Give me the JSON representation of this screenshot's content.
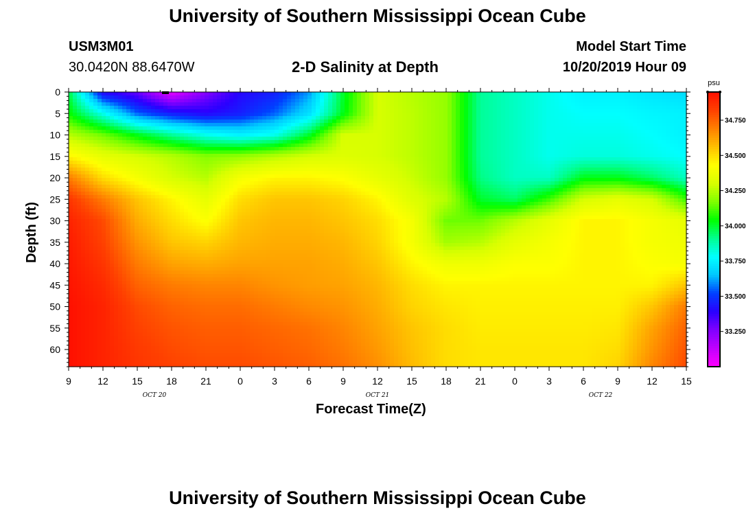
{
  "page": {
    "title_top": "University of Southern Mississippi Ocean Cube",
    "title_bottom": "University of Southern Mississippi Ocean Cube",
    "station_id": "USM3M01",
    "station_coords": "30.0420N 88.6470W",
    "plot_title": "2-D Salinity at Depth",
    "model_start_label": "Model Start Time",
    "model_start_value": "10/20/2019 Hour 09"
  },
  "chart_data": {
    "type": "heatmap",
    "title": "2-D Salinity at Depth",
    "xlabel": "Forecast Time(Z)",
    "ylabel": "Depth (ft)",
    "x_ticks": [
      "9",
      "12",
      "15",
      "18",
      "21",
      "0",
      "3",
      "6",
      "9",
      "12",
      "15",
      "18",
      "21",
      "0",
      "3",
      "6",
      "9",
      "12",
      "15"
    ],
    "date_labels": [
      {
        "text": "OCT 20",
        "x_tick_index": 2.5
      },
      {
        "text": "OCT 21",
        "x_tick_index": 9
      },
      {
        "text": "OCT 22",
        "x_tick_index": 15.5
      }
    ],
    "y_ticks": [
      0,
      5,
      10,
      15,
      20,
      25,
      30,
      35,
      40,
      45,
      50,
      55,
      60
    ],
    "ylim": [
      0,
      64
    ],
    "colorbar": {
      "unit": "psu",
      "range": [
        33.0,
        34.95
      ],
      "tick_values": [
        34.75,
        34.5,
        34.25,
        34.0,
        33.75,
        33.5,
        33.25
      ],
      "tick_labels": [
        "34.750",
        "34.500",
        "34.250",
        "34.000",
        "33.750",
        "33.500",
        "33.250"
      ],
      "colors": [
        "#ff00ff",
        "#c000ff",
        "#8000ff",
        "#2a00ff",
        "#0040ff",
        "#00c8ff",
        "#00ffff",
        "#00ff90",
        "#00ff00",
        "#80ff00",
        "#d8ff00",
        "#ffff00",
        "#ffc000",
        "#ff8000",
        "#ff4000",
        "#ff1000"
      ]
    },
    "depths": [
      0,
      5,
      10,
      15,
      20,
      25,
      30,
      35,
      40,
      45,
      50,
      55,
      60,
      64
    ],
    "times_hours_from_start": [
      0,
      3,
      6,
      9,
      12,
      15,
      18,
      21,
      24,
      27,
      30,
      33,
      36,
      39,
      42,
      45,
      48,
      51,
      54
    ],
    "salinity": [
      [
        33.98,
        33.4,
        33.3,
        33.05,
        33.25,
        33.4,
        33.45,
        33.6,
        34.0,
        34.3,
        34.25,
        34.2,
        33.9,
        33.85,
        33.8,
        33.75,
        33.75,
        33.72,
        33.7
      ],
      [
        34.05,
        33.8,
        33.55,
        33.45,
        33.4,
        33.45,
        33.55,
        33.7,
        34.02,
        34.3,
        34.26,
        34.2,
        33.9,
        33.85,
        33.8,
        33.78,
        33.78,
        33.76,
        33.75
      ],
      [
        34.25,
        34.15,
        34.02,
        33.9,
        33.8,
        33.75,
        33.8,
        34.0,
        34.3,
        34.3,
        34.26,
        34.2,
        33.9,
        33.85,
        33.8,
        33.8,
        33.8,
        33.78,
        33.75
      ],
      [
        34.45,
        34.35,
        34.3,
        34.25,
        34.18,
        34.2,
        34.25,
        34.3,
        34.32,
        34.3,
        34.26,
        34.2,
        33.9,
        33.85,
        33.8,
        33.82,
        33.82,
        33.8,
        33.78
      ],
      [
        34.7,
        34.5,
        34.4,
        34.3,
        34.25,
        34.4,
        34.45,
        34.45,
        34.42,
        34.35,
        34.28,
        34.2,
        33.92,
        33.85,
        33.85,
        34.02,
        34.02,
        33.95,
        33.85
      ],
      [
        34.85,
        34.7,
        34.55,
        34.45,
        34.35,
        34.5,
        34.55,
        34.55,
        34.52,
        34.45,
        34.32,
        34.25,
        34.0,
        33.95,
        34.1,
        34.3,
        34.35,
        34.3,
        34.1
      ],
      [
        34.9,
        34.8,
        34.6,
        34.5,
        34.42,
        34.55,
        34.58,
        34.58,
        34.55,
        34.5,
        34.4,
        34.15,
        34.15,
        34.25,
        34.35,
        34.45,
        34.45,
        34.4,
        34.35
      ],
      [
        34.92,
        34.82,
        34.65,
        34.55,
        34.52,
        34.58,
        34.6,
        34.6,
        34.58,
        34.52,
        34.4,
        34.22,
        34.25,
        34.35,
        34.4,
        34.45,
        34.45,
        34.4,
        34.38
      ],
      [
        34.93,
        34.85,
        34.7,
        34.62,
        34.6,
        34.62,
        34.62,
        34.62,
        34.6,
        34.55,
        34.45,
        34.38,
        34.38,
        34.42,
        34.42,
        34.45,
        34.45,
        34.42,
        34.4
      ],
      [
        34.94,
        34.88,
        34.75,
        34.7,
        34.68,
        34.68,
        34.65,
        34.63,
        34.62,
        34.58,
        34.5,
        34.45,
        34.45,
        34.45,
        34.45,
        34.45,
        34.45,
        34.45,
        34.55
      ],
      [
        34.95,
        34.9,
        34.8,
        34.75,
        34.73,
        34.73,
        34.7,
        34.67,
        34.65,
        34.6,
        34.52,
        34.48,
        34.46,
        34.46,
        34.46,
        34.46,
        34.46,
        34.55,
        34.7
      ],
      [
        34.95,
        34.9,
        34.82,
        34.78,
        34.76,
        34.76,
        34.74,
        34.72,
        34.68,
        34.62,
        34.55,
        34.5,
        34.47,
        34.47,
        34.47,
        34.47,
        34.48,
        34.62,
        34.75
      ],
      [
        34.95,
        34.9,
        34.84,
        34.8,
        34.78,
        34.78,
        34.76,
        34.74,
        34.7,
        34.64,
        34.56,
        34.5,
        34.48,
        34.48,
        34.48,
        34.48,
        34.5,
        34.65,
        34.78
      ],
      [
        34.95,
        34.9,
        34.85,
        34.82,
        34.8,
        34.8,
        34.78,
        34.76,
        34.72,
        34.66,
        34.57,
        34.5,
        34.48,
        34.48,
        34.48,
        34.48,
        34.52,
        34.68,
        34.8
      ]
    ]
  }
}
